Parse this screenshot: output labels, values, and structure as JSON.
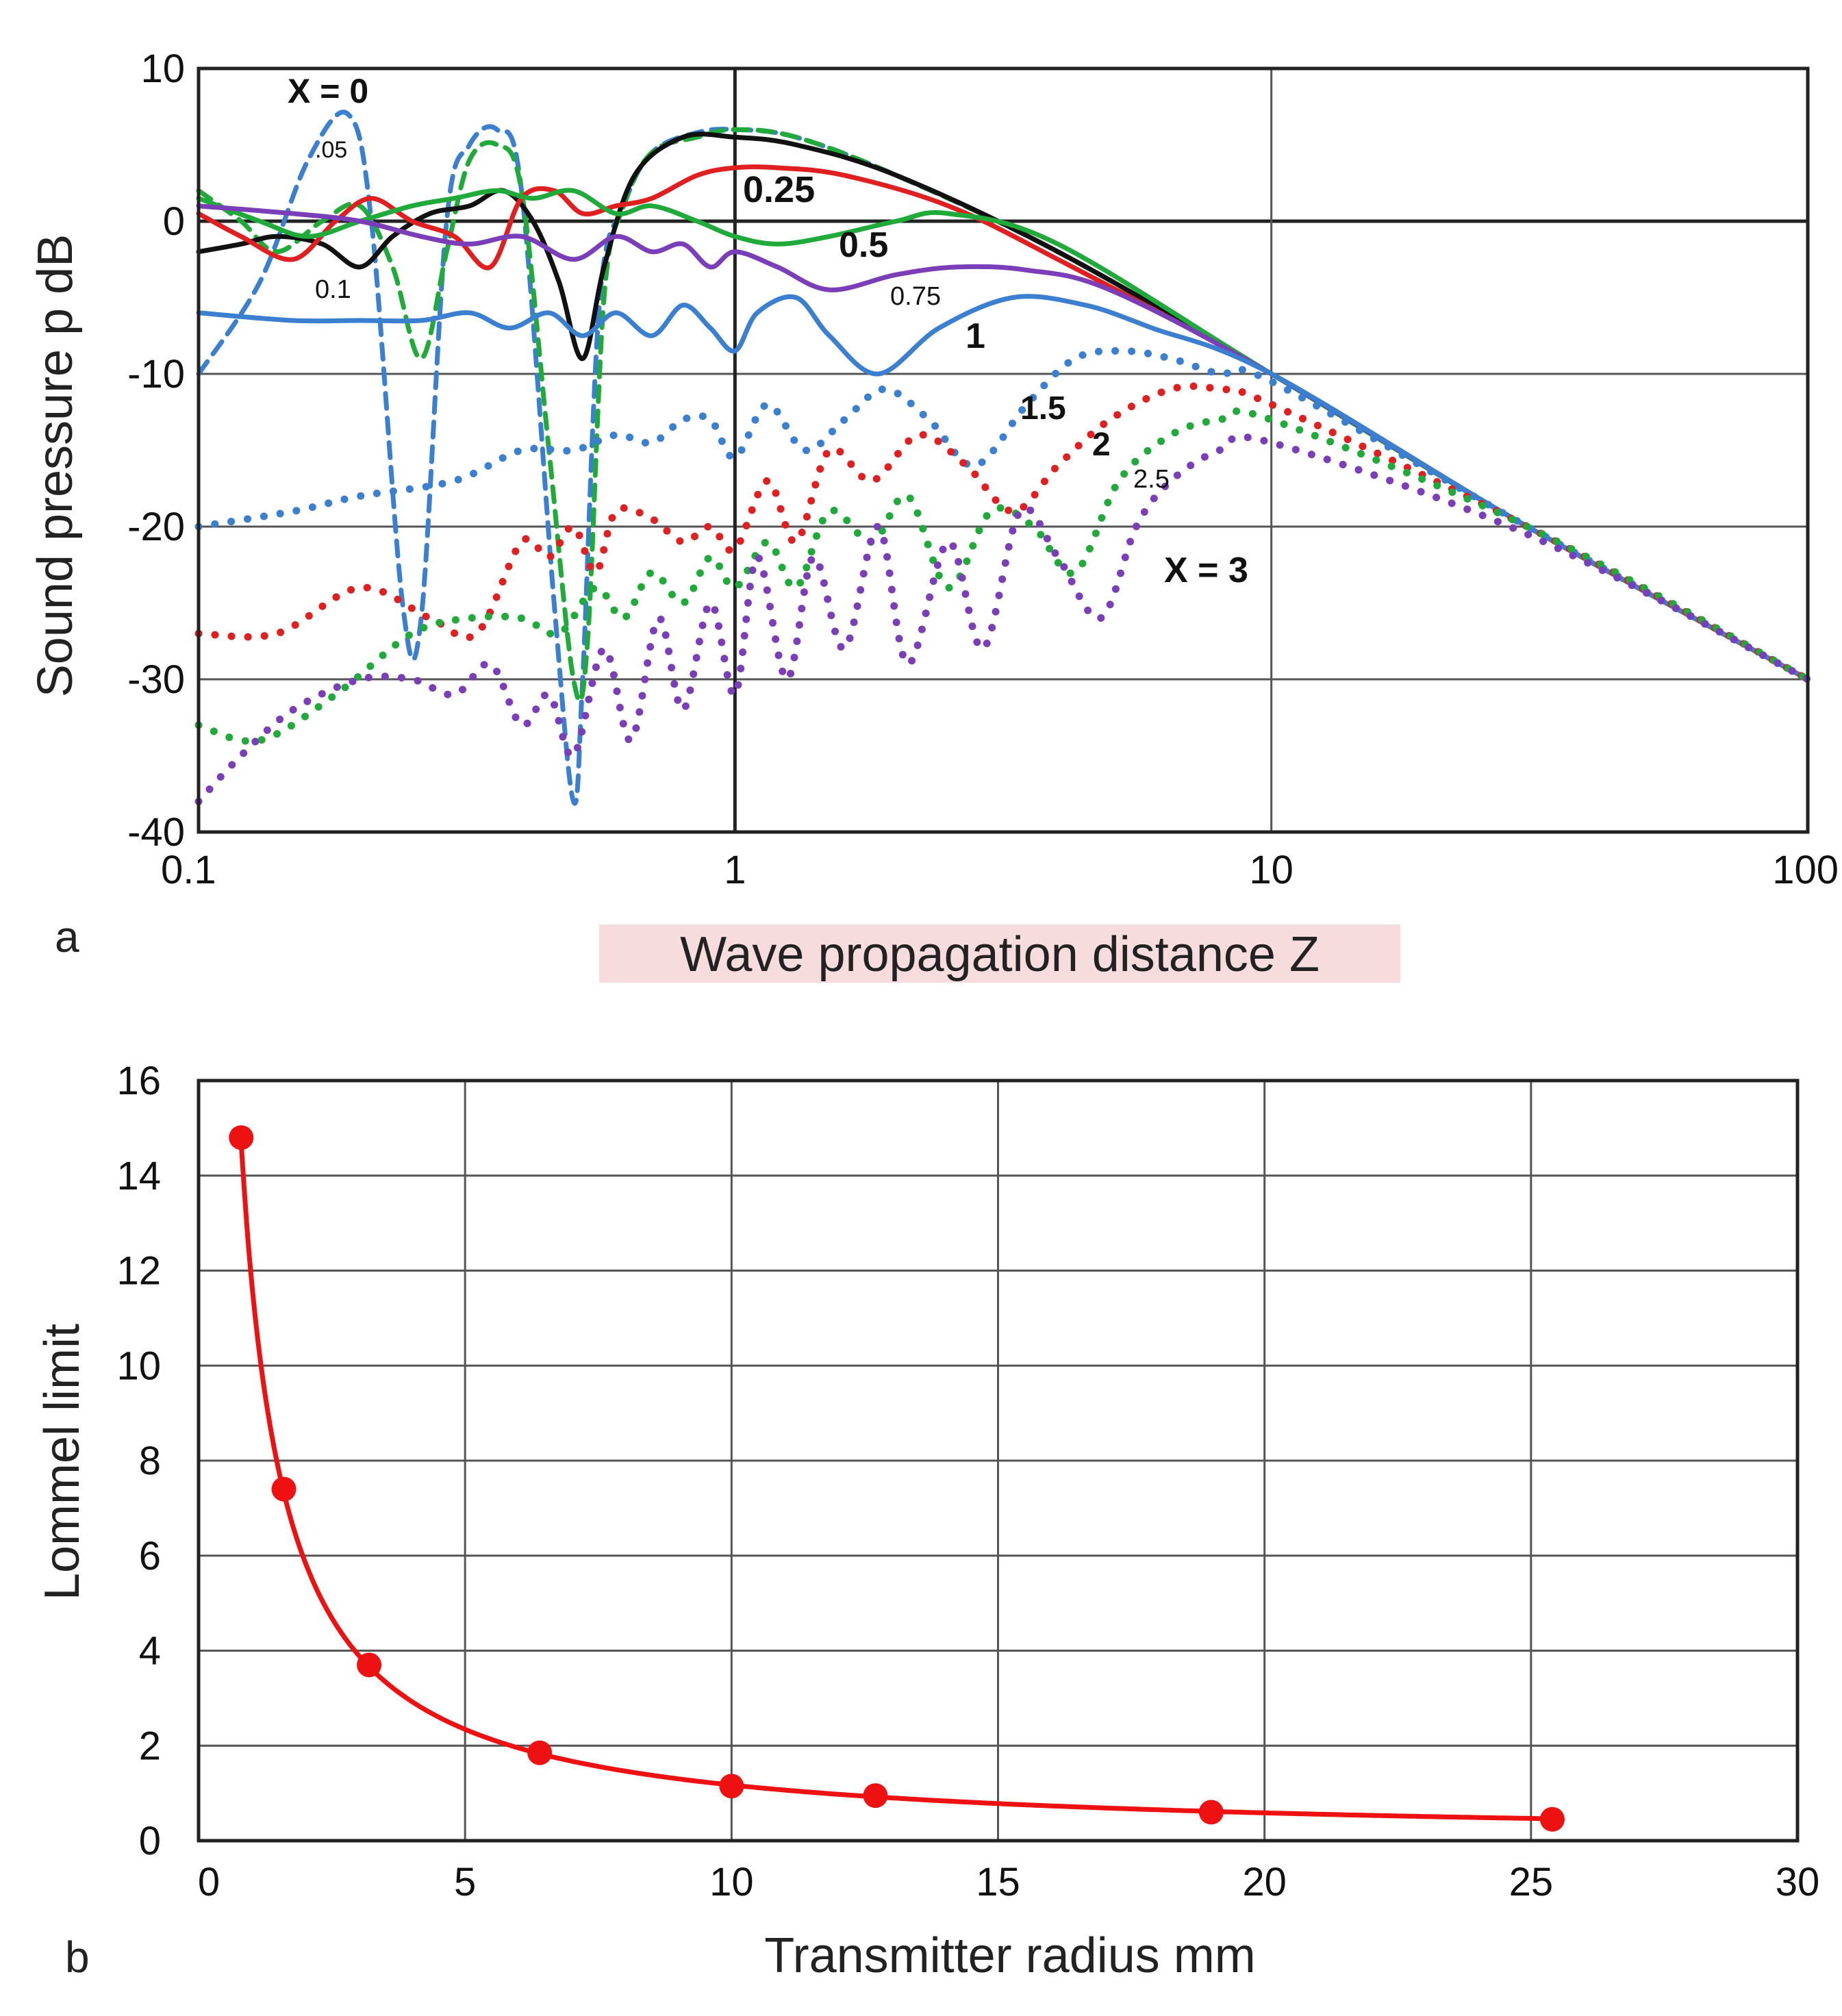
{
  "chart_data": [
    {
      "id": "a",
      "type": "line",
      "panel_label": "a",
      "xlabel": "Wave propagation distance  Z",
      "ylabel": "Sound pressure  p  dB",
      "xscale": "log",
      "xlim": [
        0.1,
        100
      ],
      "ylim": [
        -40,
        10
      ],
      "xticks": [
        0.1,
        1,
        10,
        100
      ],
      "xtick_labels": [
        "0.1",
        "1",
        "10",
        "100"
      ],
      "yticks": [
        10,
        0,
        -10,
        -20,
        -30,
        -40
      ],
      "ytick_labels": [
        "10",
        "0",
        "-10",
        "-20",
        "-30",
        "-40"
      ],
      "grid": true,
      "series": [
        {
          "name": "X = 0",
          "color": "#3a7fd0",
          "style": "dashed",
          "z": [
            0.1,
            0.13,
            0.16,
            0.19,
            0.21,
            0.24,
            0.26,
            0.29,
            0.32,
            0.36,
            0.4,
            0.46,
            0.5,
            0.52,
            0.56,
            0.62,
            0.7,
            0.85,
            1.0,
            1.3,
            2,
            4,
            10,
            30,
            100
          ],
          "p": [
            -10,
            -4,
            4,
            7,
            0,
            -25,
            -26,
            0,
            5,
            6,
            2,
            -25,
            -38,
            -30,
            -5,
            1,
            4.5,
            5.8,
            6,
            5.5,
            3,
            -2,
            -10,
            -20,
            -30
          ]
        },
        {
          "name": ".05",
          "color": "#1faa3a",
          "style": "dashed",
          "z": [
            0.1,
            0.12,
            0.14,
            0.17,
            0.2,
            0.23,
            0.26,
            0.29,
            0.32,
            0.36,
            0.4,
            0.45,
            0.5,
            0.53,
            0.57,
            0.62,
            0.7,
            0.85,
            1.0,
            1.3,
            2,
            4,
            10,
            30,
            100
          ],
          "p": [
            2,
            0,
            -2,
            0,
            1,
            -3,
            -9,
            -2,
            4,
            5,
            2,
            -15,
            -30,
            -28,
            -5,
            1,
            4.5,
            5.5,
            6,
            5.5,
            3,
            -2,
            -10,
            -20,
            -30
          ]
        },
        {
          "name": "0.1",
          "color": "#111111",
          "style": "solid",
          "z": [
            0.1,
            0.12,
            0.14,
            0.17,
            0.2,
            0.23,
            0.27,
            0.32,
            0.37,
            0.42,
            0.47,
            0.52,
            0.57,
            0.65,
            0.8,
            1.0,
            1.3,
            2,
            4,
            10,
            30,
            100
          ],
          "p": [
            -2,
            -1.5,
            -1,
            -1.5,
            -3,
            -1,
            0.5,
            1,
            2,
            0,
            -4,
            -9,
            -3,
            3,
            5.5,
            5.5,
            5,
            3,
            -2,
            -10,
            -20,
            -30
          ]
        },
        {
          "name": "0.25",
          "color": "#e02020",
          "style": "solid",
          "z": [
            0.1,
            0.12,
            0.15,
            0.18,
            0.21,
            0.25,
            0.3,
            0.35,
            0.4,
            0.46,
            0.52,
            0.6,
            0.7,
            0.85,
            1.0,
            1.2,
            1.6,
            2.5,
            4,
            10,
            30,
            100
          ],
          "p": [
            0.5,
            -1,
            -2.5,
            0,
            1.5,
            0,
            -1,
            -3,
            1.5,
            2,
            0.5,
            1,
            1.5,
            3,
            3.5,
            3.5,
            3,
            1,
            -2.5,
            -10,
            -20,
            -30
          ]
        },
        {
          "name": "0.5",
          "color": "#1faa3a",
          "style": "solid",
          "z": [
            0.1,
            0.13,
            0.16,
            0.2,
            0.25,
            0.3,
            0.36,
            0.42,
            0.5,
            0.6,
            0.7,
            0.85,
            1.0,
            1.2,
            1.5,
            2,
            2.5,
            4,
            10,
            30,
            100
          ],
          "p": [
            1.5,
            0,
            -1,
            0,
            1,
            1.5,
            2,
            1.5,
            2,
            0.5,
            1,
            0,
            -1,
            -1.5,
            -1,
            0,
            0.5,
            -1.5,
            -10,
            -20,
            -30
          ]
        },
        {
          "name": "0.75",
          "color": "#7a3fb8",
          "style": "solid",
          "z": [
            0.1,
            0.15,
            0.2,
            0.26,
            0.32,
            0.4,
            0.5,
            0.6,
            0.7,
            0.8,
            0.9,
            1.0,
            1.2,
            1.5,
            2,
            2.6,
            3.5,
            5,
            10,
            30,
            100
          ],
          "p": [
            1,
            0.5,
            0,
            -1,
            -1.5,
            -1,
            -2.5,
            -1,
            -2,
            -1.5,
            -3,
            -2,
            -3,
            -4.5,
            -3.5,
            -3,
            -3.2,
            -4.5,
            -10,
            -20,
            -30
          ]
        },
        {
          "name": "1",
          "color": "#3a7fd0",
          "style": "solid",
          "z": [
            0.1,
            0.15,
            0.2,
            0.26,
            0.32,
            0.38,
            0.45,
            0.52,
            0.6,
            0.7,
            0.8,
            0.9,
            1.0,
            1.1,
            1.3,
            1.5,
            1.85,
            2.4,
            3.3,
            4.5,
            6,
            10,
            30,
            100
          ],
          "p": [
            -6,
            -6.5,
            -6.5,
            -6.5,
            -6,
            -7,
            -6,
            -7.5,
            -6,
            -7.5,
            -5.5,
            -7,
            -8.5,
            -6,
            -5,
            -7.5,
            -10,
            -7,
            -5,
            -5.5,
            -7,
            -10,
            -20,
            -30
          ]
        },
        {
          "name": "1.5",
          "color": "#3a7fd0",
          "style": "dotted",
          "z": [
            0.1,
            0.15,
            0.2,
            0.3,
            0.4,
            0.5,
            0.6,
            0.7,
            0.8,
            0.9,
            1.0,
            1.15,
            1.35,
            1.6,
            1.9,
            2.3,
            2.8,
            3.5,
            4.3,
            5.3,
            6.5,
            8,
            10,
            30,
            100
          ],
          "p": [
            -20,
            -19,
            -18,
            -17,
            -15,
            -15,
            -14,
            -14.5,
            -13,
            -13,
            -15.5,
            -12,
            -15,
            -13,
            -11,
            -13,
            -16,
            -12,
            -9,
            -8.5,
            -9,
            -10,
            -10.5,
            -20,
            -30
          ]
        },
        {
          "name": "2",
          "color": "#e02020",
          "style": "dotted",
          "z": [
            0.1,
            0.14,
            0.2,
            0.27,
            0.33,
            0.4,
            0.45,
            0.5,
            0.55,
            0.6,
            0.7,
            0.8,
            0.9,
            1.0,
            1.15,
            1.3,
            1.5,
            1.8,
            2.2,
            2.7,
            3.3,
            4,
            5,
            6.5,
            8,
            10,
            30,
            100
          ],
          "p": [
            -27,
            -27,
            -24,
            -26,
            -27,
            -21,
            -22,
            -20,
            -23,
            -19,
            -19.5,
            -21,
            -20,
            -21.5,
            -17,
            -21,
            -15,
            -17,
            -14,
            -16,
            -19,
            -16,
            -13,
            -11,
            -11,
            -12,
            -20,
            -30
          ]
        },
        {
          "name": "2.5",
          "color": "#1faa3a",
          "style": "dotted",
          "z": [
            0.1,
            0.13,
            0.18,
            0.25,
            0.32,
            0.4,
            0.47,
            0.55,
            0.62,
            0.7,
            0.8,
            0.9,
            1.0,
            1.15,
            1.3,
            1.5,
            1.8,
            2.1,
            2.5,
            3.0,
            3.6,
            4.3,
            5.2,
            6.5,
            8,
            10,
            30,
            100
          ],
          "p": [
            -33,
            -34,
            -31,
            -27,
            -26,
            -26,
            -27,
            -24,
            -26,
            -23,
            -25,
            -22,
            -24,
            -21,
            -24,
            -19,
            -21,
            -18,
            -24,
            -19,
            -20,
            -23,
            -17,
            -14,
            -13,
            -13,
            -20,
            -30
          ]
        },
        {
          "name": "X = 3",
          "color": "#7a3fb8",
          "style": "dotted",
          "z": [
            0.1,
            0.12,
            0.15,
            0.2,
            0.25,
            0.3,
            0.35,
            0.4,
            0.45,
            0.5,
            0.57,
            0.64,
            0.72,
            0.8,
            0.9,
            1.0,
            1.1,
            1.25,
            1.4,
            1.6,
            1.85,
            2.1,
            2.5,
            2.9,
            3.4,
            4.0,
            4.8,
            5.6,
            6.5,
            8,
            10,
            30,
            100
          ],
          "p": [
            -38,
            -35,
            -32,
            -30,
            -30,
            -31,
            -29,
            -33,
            -31,
            -35,
            -28,
            -34,
            -26,
            -32,
            -25,
            -31,
            -22,
            -30,
            -22,
            -28,
            -20,
            -29,
            -21,
            -28,
            -19,
            -22,
            -26,
            -20,
            -17,
            -15,
            -14.5,
            -20.5,
            -30
          ]
        }
      ],
      "annotations": [
        "X = 0",
        ".05",
        "0.1",
        "0.25",
        "0.5",
        "0.75",
        "1",
        "1.5",
        "2",
        "2.5",
        "X = 3"
      ]
    },
    {
      "id": "b",
      "type": "line",
      "panel_label": "b",
      "xlabel": "Transmitter radius  mm",
      "ylabel": "Lommel limit",
      "xlim": [
        0,
        30
      ],
      "ylim": [
        0,
        16
      ],
      "xticks": [
        0,
        5,
        10,
        15,
        20,
        25,
        30
      ],
      "xtick_labels": [
        "0",
        "5",
        "10",
        "15",
        "20",
        "25",
        "30"
      ],
      "yticks": [
        0,
        2,
        4,
        6,
        8,
        10,
        12,
        14,
        16
      ],
      "ytick_labels": [
        "0",
        "2",
        "4",
        "6",
        "8",
        "10",
        "12",
        "14",
        "16"
      ],
      "grid": true,
      "series": [
        {
          "name": "Lommel limit",
          "color": "#ee1111",
          "x": [
            0.8,
            1.6,
            3.2,
            6.4,
            10.0,
            12.7,
            19.0,
            25.4
          ],
          "y": [
            14.8,
            7.4,
            3.7,
            1.85,
            1.15,
            0.95,
            0.6,
            0.45
          ]
        }
      ]
    }
  ]
}
